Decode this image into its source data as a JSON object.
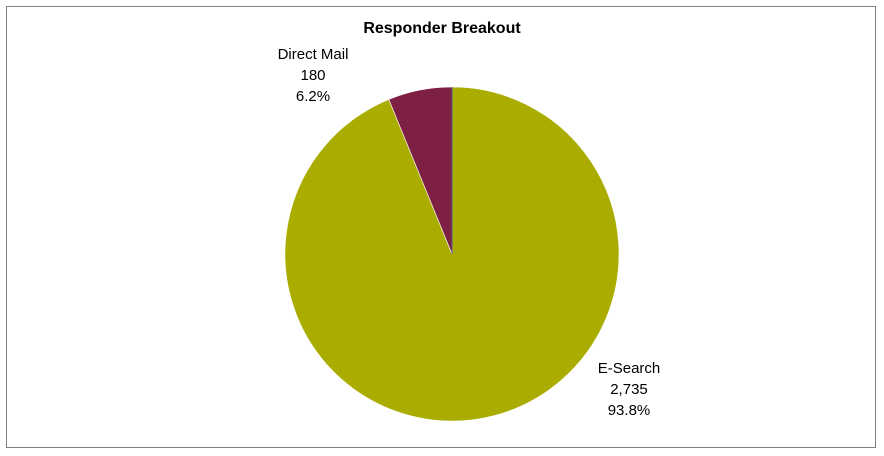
{
  "chart_data": {
    "type": "pie",
    "title": "Responder Breakout",
    "slices": [
      {
        "name": "E-Search",
        "value": 2735,
        "value_label": "2,735",
        "percent_label": "93.8%",
        "color": "#aaad00"
      },
      {
        "name": "Direct Mail",
        "value": 180,
        "value_label": "180",
        "percent_label": "6.2%",
        "color": "#7e2044"
      }
    ],
    "start": "12 o'clock, clockwise",
    "legend": "none (data labels outside slices)"
  }
}
